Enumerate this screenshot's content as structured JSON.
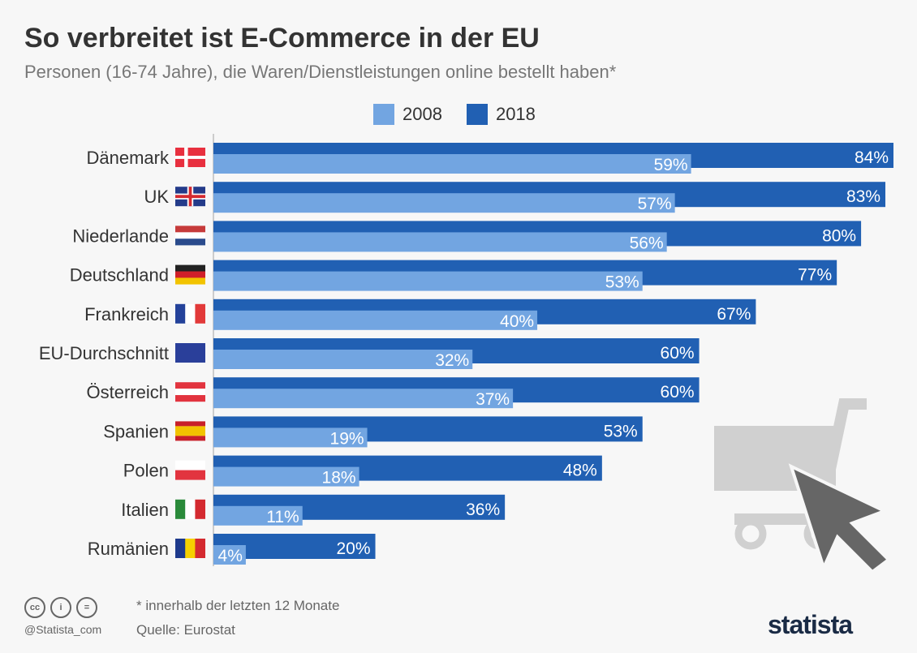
{
  "header": {
    "title": "So verbreitet ist E-Commerce in der EU",
    "subtitle": "Personen (16-74 Jahre), die Waren/Dienstleistungen online bestellt haben*"
  },
  "chart_data": {
    "type": "bar",
    "orientation": "horizontal",
    "title": "So verbreitet ist E-Commerce in der EU",
    "subtitle": "Personen (16-74 Jahre), die Waren/Dienstleistungen online bestellt haben*",
    "categories": [
      "Dänemark",
      "UK",
      "Niederlande",
      "Deutschland",
      "Frankreich",
      "EU-Durchschnitt",
      "Österreich",
      "Spanien",
      "Polen",
      "Italien",
      "Rumänien"
    ],
    "series": [
      {
        "name": "2008",
        "color": "#72a5e1",
        "values": [
          59,
          57,
          56,
          53,
          40,
          32,
          37,
          19,
          18,
          11,
          4
        ]
      },
      {
        "name": "2018",
        "color": "#2160b3",
        "values": [
          84,
          83,
          80,
          77,
          67,
          60,
          60,
          53,
          48,
          36,
          20
        ]
      }
    ],
    "unit": "%",
    "xlim": [
      0,
      84
    ],
    "legend": "top",
    "grid": false
  },
  "footer": {
    "note": "* innerhalb der letzten 12 Monate",
    "source": "Quelle: Eurostat",
    "handle": "@Statista_com",
    "brand": "statista"
  }
}
